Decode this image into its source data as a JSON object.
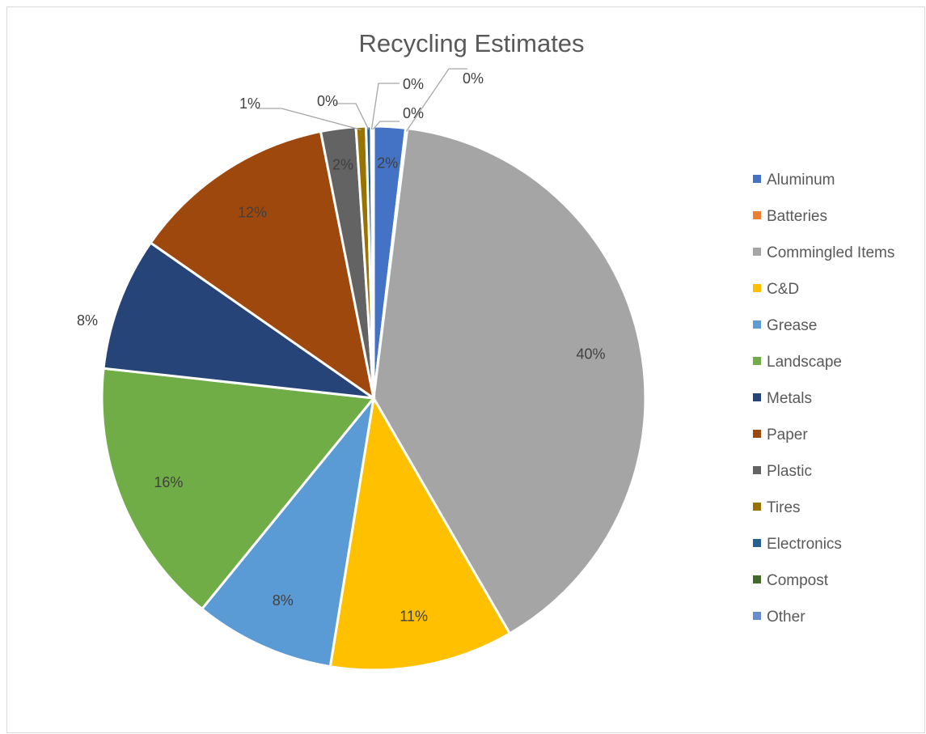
{
  "chart_data": {
    "type": "pie",
    "title": "Recycling Estimates",
    "series": [
      {
        "name": "Aluminum",
        "value": 1.9,
        "label": "2%",
        "color": "#4472c4"
      },
      {
        "name": "Batteries",
        "value": 0.1,
        "label": "0%",
        "color": "#ed7d31"
      },
      {
        "name": "Commingled Items",
        "value": 40.0,
        "label": "40%",
        "color": "#a5a5a5"
      },
      {
        "name": "C&D",
        "value": 11.0,
        "label": "11%",
        "color": "#ffc000"
      },
      {
        "name": "Grease",
        "value": 8.4,
        "label": "8%",
        "color": "#5b9bd5"
      },
      {
        "name": "Landscape",
        "value": 16.0,
        "label": "16%",
        "color": "#70ad47"
      },
      {
        "name": "Metals",
        "value": 8.0,
        "label": "8%",
        "color": "#264478"
      },
      {
        "name": "Paper",
        "value": 12.3,
        "label": "12%",
        "color": "#9e480e"
      },
      {
        "name": "Plastic",
        "value": 2.1,
        "label": "2%",
        "color": "#636363"
      },
      {
        "name": "Tires",
        "value": 0.6,
        "label": "1%",
        "color": "#997300"
      },
      {
        "name": "Electronics",
        "value": 0.3,
        "label": "0%",
        "color": "#255e91"
      },
      {
        "name": "Compost",
        "value": 0.05,
        "label": "0%",
        "color": "#43682b"
      },
      {
        "name": "Other",
        "value": 0.1,
        "label": "0%",
        "color": "#698ed0"
      }
    ],
    "legend_position": "right"
  }
}
